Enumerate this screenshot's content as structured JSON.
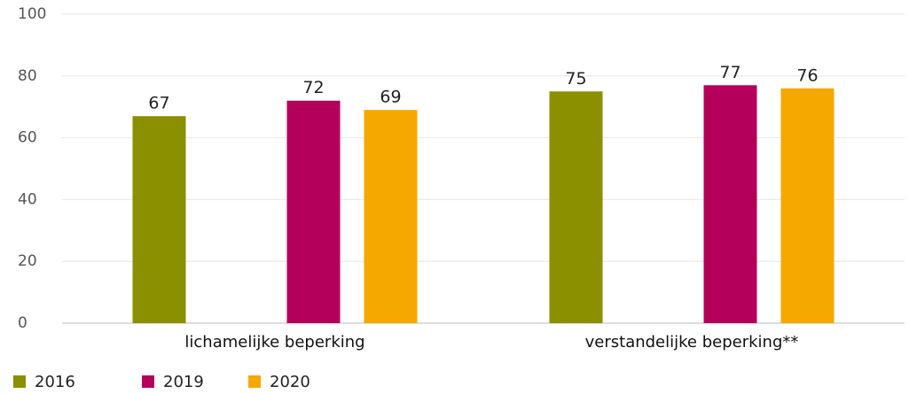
{
  "chart_data": {
    "type": "bar",
    "categories": [
      "lichamelijke beperking",
      "verstandelijke beperking**"
    ],
    "series": [
      {
        "name": "2016",
        "color": "#8a9000",
        "values": [
          67,
          75
        ]
      },
      {
        "name": "2019",
        "color": "#b5005b",
        "values": [
          72,
          77
        ]
      },
      {
        "name": "2020",
        "color": "#f5a800",
        "values": [
          69,
          76
        ]
      }
    ],
    "ylim": [
      0,
      100
    ],
    "yticks": [
      0,
      20,
      40,
      60,
      80,
      100
    ],
    "grid": true,
    "legend": "bottom-left"
  }
}
